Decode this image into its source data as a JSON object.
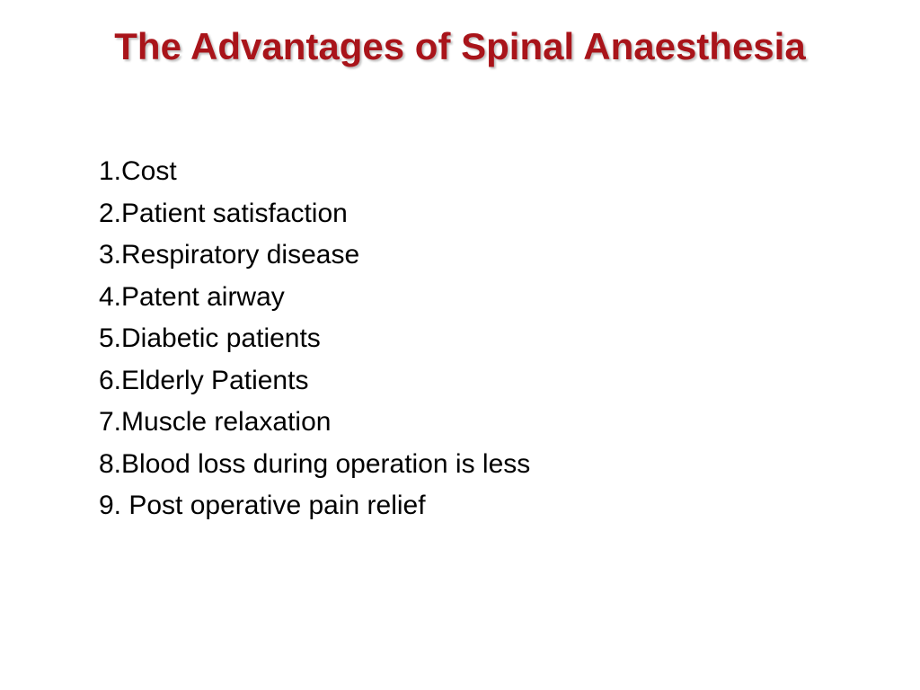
{
  "title": "The Advantages of Spinal Anaesthesia",
  "title_color": "#a9141a",
  "title_fontsize": 42,
  "list_color": "#000000",
  "list_fontsize": 30,
  "items": [
    "1.Cost",
    "2.Patient satisfaction",
    "3.Respiratory disease",
    "4.Patent airway",
    "5.Diabetic patients",
    "6.Elderly Patients",
    "7.Muscle relaxation",
    "8.Blood loss during operation is less",
    "9. Post operative pain relief"
  ],
  "background_color": "#ffffff"
}
